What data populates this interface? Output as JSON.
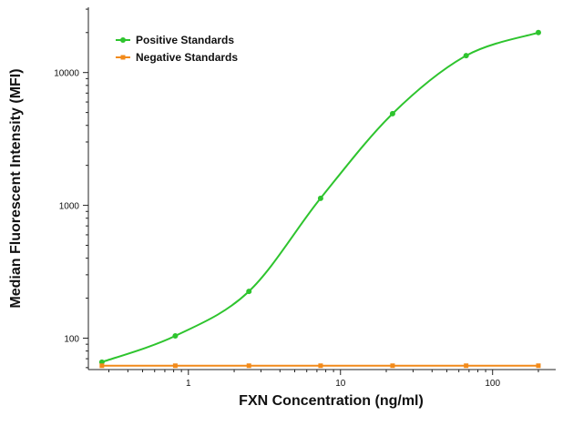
{
  "chart_data": {
    "type": "scatter",
    "xlabel": "FXN Concentration (ng/ml)",
    "ylabel": "Median Fluorescent Intensity (MFI)",
    "x_scale": "log",
    "y_scale": "log",
    "xlim": [
      0.22,
      260
    ],
    "ylim": [
      58,
      31000
    ],
    "x_ticks": [
      1,
      10,
      100
    ],
    "x_tick_labels": [
      "1",
      "10",
      "100"
    ],
    "y_ticks": [
      100,
      1000,
      10000
    ],
    "y_tick_labels": [
      "100",
      "1000",
      "10000"
    ],
    "grid": false,
    "legend_position": "top-left",
    "series": [
      {
        "name": "Positive Standards",
        "color": "#2ec42e",
        "marker": "circle",
        "fit": "4PL-curve",
        "x": [
          0.27,
          0.82,
          2.5,
          7.4,
          22,
          67,
          200
        ],
        "y": [
          66,
          104,
          225,
          1130,
          4900,
          13400,
          20000
        ]
      },
      {
        "name": "Negative Standards",
        "color": "#f28a1a",
        "marker": "square",
        "fit": "line",
        "x": [
          0.27,
          0.82,
          2.5,
          7.4,
          22,
          67,
          200
        ],
        "y": [
          62,
          62,
          62,
          62,
          62,
          62,
          62
        ]
      }
    ]
  }
}
